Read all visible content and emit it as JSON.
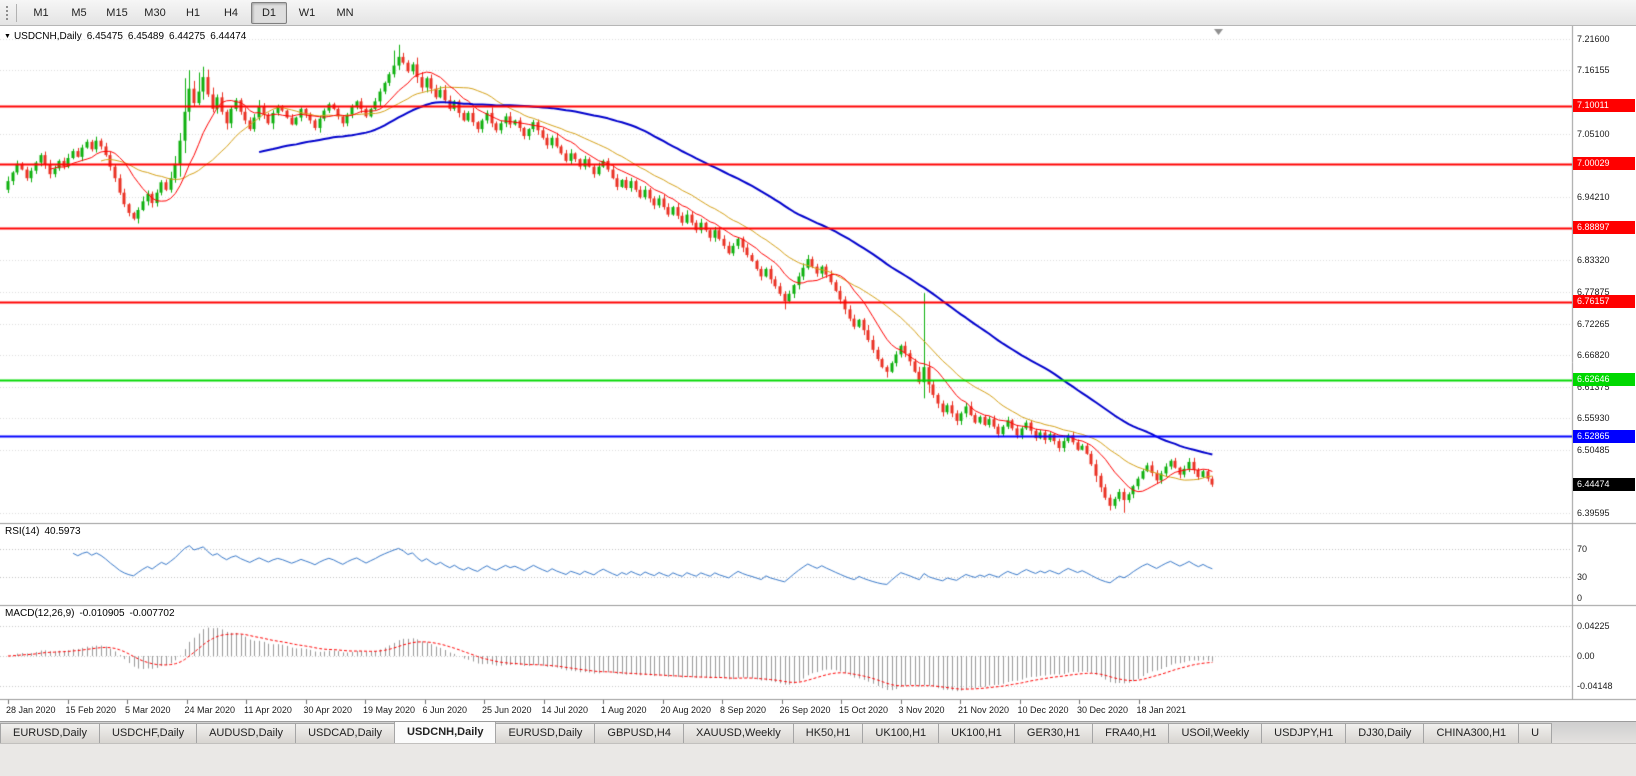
{
  "icons": {
    "symbol_dropdown": "▼"
  },
  "toolbar": {
    "timeframes": [
      "M1",
      "M5",
      "M15",
      "M30",
      "H1",
      "H4",
      "D1",
      "W1",
      "MN"
    ],
    "active": "D1"
  },
  "chart_header": {
    "symbol": "USDCNH,Daily",
    "open": "6.45475",
    "high": "6.45489",
    "low": "6.44275",
    "close": "6.44474"
  },
  "chart_data": {
    "type": "candlestick",
    "symbol": "USDCNH",
    "timeframe": "Daily",
    "ohlc_display": {
      "open": 6.45475,
      "high": 6.45489,
      "low": 6.44275,
      "close": 6.44474
    },
    "current_price": 6.44474,
    "y_axis": {
      "range": [
        6.38,
        7.235
      ],
      "ticks": [
        "7.21600",
        "7.16155",
        "7.05100",
        "6.94210",
        "6.83320",
        "6.77875",
        "6.72265",
        "6.66820",
        "6.61375",
        "6.55930",
        "6.50485",
        "6.39595"
      ]
    },
    "x_axis": {
      "labels": [
        "28 Jan 2020",
        "15 Feb 2020",
        "5 Mar 2020",
        "24 Mar 2020",
        "11 Apr 2020",
        "30 Apr 2020",
        "19 May 2020",
        "6 Jun 2020",
        "25 Jun 2020",
        "14 Jul 2020",
        "1 Aug 2020",
        "20 Aug 2020",
        "8 Sep 2020",
        "26 Sep 2020",
        "15 Oct 2020",
        "3 Nov 2020",
        "21 Nov 2020",
        "10 Dec 2020",
        "30 Dec 2020",
        "18 Jan 2021"
      ]
    },
    "levels": [
      {
        "price": 7.10011,
        "color": "#ff0000"
      },
      {
        "price": 7.00029,
        "color": "#ff0000"
      },
      {
        "price": 6.88897,
        "color": "#ff0000"
      },
      {
        "price": 6.76157,
        "color": "#ff0000"
      },
      {
        "price": 6.62646,
        "color": "#00d800"
      },
      {
        "price": 6.52865,
        "color": "#0000ff"
      }
    ],
    "first_open": 6.955,
    "closes": [
      6.97,
      6.985,
      7.0,
      6.99,
      6.975,
      6.988,
      7.002,
      7.015,
      6.998,
      6.982,
      6.992,
      7.005,
      6.995,
      7.01,
      7.022,
      7.012,
      7.028,
      7.038,
      7.025,
      7.04,
      7.03,
      7.015,
      6.995,
      6.975,
      6.95,
      6.93,
      6.915,
      6.905,
      6.92,
      6.935,
      6.948,
      6.932,
      6.95,
      6.968,
      6.955,
      6.975,
      7.0,
      7.04,
      7.09,
      7.13,
      7.105,
      7.125,
      7.15,
      7.12,
      7.095,
      7.115,
      7.09,
      7.07,
      7.095,
      7.11,
      7.09,
      7.075,
      7.06,
      7.08,
      7.1,
      7.085,
      7.07,
      7.088,
      7.1,
      7.092,
      7.08,
      7.068,
      7.08,
      7.095,
      7.085,
      7.075,
      7.062,
      7.078,
      7.092,
      7.103,
      7.095,
      7.082,
      7.07,
      7.085,
      7.098,
      7.108,
      7.095,
      7.082,
      7.095,
      7.108,
      7.125,
      7.14,
      7.155,
      7.17,
      7.185,
      7.175,
      7.16,
      7.172,
      7.15,
      7.132,
      7.148,
      7.13,
      7.115,
      7.128,
      7.11,
      7.095,
      7.108,
      7.088,
      7.075,
      7.088,
      7.072,
      7.06,
      7.075,
      7.088,
      7.07,
      7.058,
      7.07,
      7.082,
      7.068,
      7.075,
      7.062,
      7.048,
      7.06,
      7.072,
      7.058,
      7.045,
      7.032,
      7.045,
      7.03,
      7.018,
      7.005,
      7.018,
      7.008,
      6.995,
      7.008,
      6.995,
      6.982,
      6.995,
      7.005,
      6.99,
      6.975,
      6.96,
      6.972,
      6.958,
      6.97,
      6.955,
      6.942,
      6.955,
      6.94,
      6.928,
      6.94,
      6.925,
      6.912,
      6.925,
      6.91,
      6.898,
      6.912,
      6.898,
      6.885,
      6.898,
      6.885,
      6.872,
      6.885,
      6.87,
      6.858,
      6.845,
      6.858,
      6.87,
      6.855,
      6.842,
      6.832,
      6.818,
      6.805,
      6.818,
      6.8,
      6.788,
      6.775,
      6.762,
      6.775,
      6.79,
      6.805,
      6.82,
      6.835,
      6.822,
      6.81,
      6.822,
      6.808,
      6.795,
      6.78,
      6.765,
      6.748,
      6.732,
      6.718,
      6.73,
      6.712,
      6.695,
      6.678,
      6.662,
      6.648,
      6.64,
      6.655,
      6.67,
      6.685,
      6.672,
      6.658,
      6.64,
      6.622,
      6.648,
      6.618,
      6.6,
      6.585,
      6.57,
      6.582,
      6.568,
      6.555,
      6.568,
      6.58,
      6.565,
      6.552,
      6.562,
      6.548,
      6.558,
      6.545,
      6.532,
      6.545,
      6.556,
      6.542,
      6.53,
      6.542,
      6.552,
      6.538,
      6.525,
      6.535,
      6.522,
      6.532,
      6.52,
      6.508,
      6.52,
      6.53,
      6.518,
      6.505,
      6.512,
      6.498,
      6.48,
      6.46,
      6.44,
      6.422,
      6.408,
      6.42,
      6.432,
      6.418,
      6.428,
      6.442,
      6.455,
      6.468,
      6.478,
      6.465,
      6.452,
      6.464,
      6.476,
      6.486,
      6.474,
      6.462,
      6.472,
      6.484,
      6.47,
      6.458,
      6.468,
      6.455,
      6.44474
    ],
    "wick_overrides": {
      "38": {
        "high": 7.148
      },
      "39": {
        "high": 7.162
      },
      "41": {
        "high": 7.158
      },
      "42": {
        "high": 7.168
      },
      "83": {
        "high": 7.196
      },
      "84": {
        "high": 7.206
      },
      "85": {
        "high": 7.192
      },
      "167": {
        "low": 6.748
      },
      "189": {
        "low": 6.63
      },
      "197": {
        "high": 6.776,
        "low": 6.594
      },
      "237": {
        "low": 6.4
      },
      "240": {
        "low": 6.396
      }
    },
    "moving_averages": [
      {
        "period": 21,
        "color": "#d4a017",
        "width": 1
      },
      {
        "period": 10,
        "color": "#ff0000",
        "width": 1
      },
      {
        "period": 55,
        "color": "#0000cc",
        "width": 2
      }
    ],
    "indicators": {
      "rsi": {
        "label": "RSI(14)",
        "value": "40.5973",
        "period": 14,
        "levels": [
          70,
          30
        ],
        "axis_ticks": [
          "70",
          "30",
          "0"
        ]
      },
      "macd": {
        "label": "MACD(12,26,9)",
        "macd_value": "-0.010905",
        "signal_value": "-0.007702",
        "params": [
          12,
          26,
          9
        ],
        "axis_ticks": [
          "0.04225",
          "0.00",
          "-0.04148"
        ]
      }
    },
    "colors": {
      "bull": "#0eb00e",
      "bear": "#ea3224",
      "grid": "#dcdcdc",
      "separator": "#9a9a9a",
      "rsi_line": "#3878c8",
      "macd_hist": "#9a9a9a",
      "macd_signal": "#ff0000",
      "current_badge": "#000000"
    }
  },
  "tabs": {
    "active_index": 4,
    "items": [
      "EURUSD,Daily",
      "USDCHF,Daily",
      "AUDUSD,Daily",
      "USDCAD,Daily",
      "USDCNH,Daily",
      "EURUSD,Daily",
      "GBPUSD,H4",
      "XAUUSD,Weekly",
      "HK50,H1",
      "UK100,H1",
      "UK100,H1",
      "GER30,H1",
      "FRA40,H1",
      "USOil,Weekly",
      "USDJPY,H1",
      "DJ30,Daily",
      "CHINA300,H1",
      "U"
    ]
  }
}
